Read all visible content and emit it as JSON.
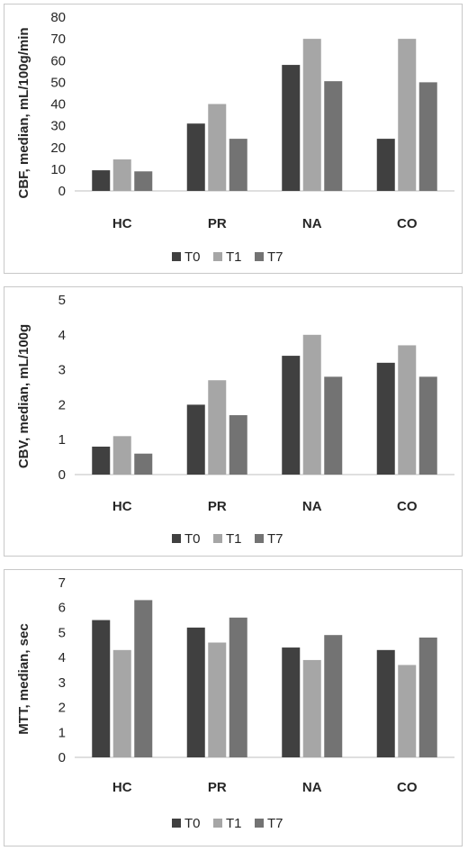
{
  "colors": {
    "T0": "#404040",
    "T1": "#a6a6a6",
    "T7": "#737373",
    "axis": "#bfbfbf",
    "text": "#262626"
  },
  "chart_data": [
    {
      "type": "bar",
      "ylabel": "CBF, median,  mL/100g/min",
      "categories": [
        "HC",
        "PR",
        "NA",
        "CO"
      ],
      "yticks": [
        "0",
        "10",
        "20",
        "30",
        "40",
        "50",
        "60",
        "70",
        "80"
      ],
      "ylim": [
        0,
        80
      ],
      "grid": false,
      "legend": "bottom",
      "series": [
        {
          "name": "T0",
          "values": [
            9.5,
            31,
            58,
            24
          ]
        },
        {
          "name": "T1",
          "values": [
            14.5,
            40,
            70,
            70
          ]
        },
        {
          "name": "T7",
          "values": [
            9,
            24,
            50.5,
            50
          ]
        }
      ]
    },
    {
      "type": "bar",
      "ylabel": "CBV, median, mL/100g",
      "categories": [
        "HC",
        "PR",
        "NA",
        "CO"
      ],
      "yticks": [
        "0",
        "1",
        "2",
        "3",
        "4",
        "5"
      ],
      "ylim": [
        0,
        5
      ],
      "grid": false,
      "legend": "bottom",
      "series": [
        {
          "name": "T0",
          "values": [
            0.8,
            2.0,
            3.4,
            3.2
          ]
        },
        {
          "name": "T1",
          "values": [
            1.1,
            2.7,
            4.0,
            3.7
          ]
        },
        {
          "name": "T7",
          "values": [
            0.6,
            1.7,
            2.8,
            2.8
          ]
        }
      ]
    },
    {
      "type": "bar",
      "ylabel": "MTT, median, sec",
      "categories": [
        "HC",
        "PR",
        "NA",
        "CO"
      ],
      "yticks": [
        "0",
        "1",
        "2",
        "3",
        "4",
        "5",
        "6",
        "7"
      ],
      "ylim": [
        0,
        7
      ],
      "grid": false,
      "legend": "bottom",
      "series": [
        {
          "name": "T0",
          "values": [
            5.5,
            5.2,
            4.4,
            4.3
          ]
        },
        {
          "name": "T1",
          "values": [
            4.3,
            4.6,
            3.9,
            3.7
          ]
        },
        {
          "name": "T7",
          "values": [
            6.3,
            5.6,
            4.9,
            4.8
          ]
        }
      ]
    }
  ]
}
